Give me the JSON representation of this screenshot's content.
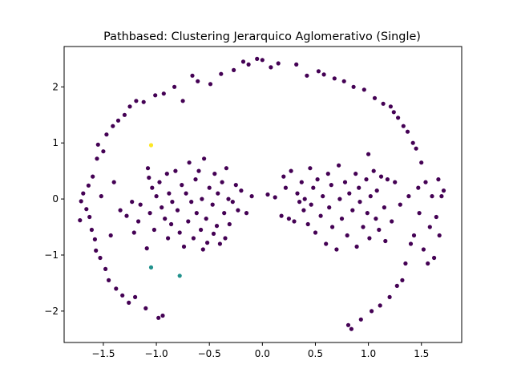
{
  "chart_data": {
    "type": "scatter",
    "title": "Pathbased: Clustering Jerarquico Aglomerativo (Single)",
    "xlabel": "",
    "ylabel": "",
    "xlim": [
      -1.87,
      1.88
    ],
    "ylim": [
      -2.56,
      2.72
    ],
    "xticks": [
      -1.5,
      -1.0,
      -0.5,
      0.0,
      0.5,
      1.0,
      1.5
    ],
    "xtick_labels": [
      "−1.5",
      "−1.0",
      "−0.5",
      "0.0",
      "0.5",
      "1.0",
      "1.5"
    ],
    "yticks": [
      -2,
      -1,
      0,
      1,
      2
    ],
    "ytick_labels": [
      "−2",
      "−1",
      "0",
      "1",
      "2"
    ],
    "grid": false,
    "series": [
      {
        "color": "#440154",
        "points": [
          [
            -1.72,
            -0.38
          ],
          [
            -1.71,
            -0.04
          ],
          [
            -1.69,
            0.1
          ],
          [
            -1.66,
            -0.18
          ],
          [
            -1.64,
            0.24
          ],
          [
            -1.63,
            -0.32
          ],
          [
            -1.61,
            -0.55
          ],
          [
            -1.6,
            0.4
          ],
          [
            -1.58,
            -0.72
          ],
          [
            -1.57,
            -0.92
          ],
          [
            -1.56,
            0.72
          ],
          [
            -1.55,
            0.97
          ],
          [
            -1.53,
            -1.05
          ],
          [
            -1.52,
            0.05
          ],
          [
            -1.5,
            0.85
          ],
          [
            -1.48,
            -1.25
          ],
          [
            -1.47,
            1.15
          ],
          [
            -1.45,
            -1.45
          ],
          [
            -1.43,
            -0.65
          ],
          [
            -1.41,
            1.3
          ],
          [
            -1.4,
            0.3
          ],
          [
            -1.38,
            -1.6
          ],
          [
            -1.36,
            1.4
          ],
          [
            -1.34,
            -0.2
          ],
          [
            -1.32,
            -1.72
          ],
          [
            -1.3,
            1.5
          ],
          [
            -1.28,
            -0.3
          ],
          [
            -1.26,
            -1.85
          ],
          [
            -1.25,
            1.65
          ],
          [
            -1.23,
            -0.05
          ],
          [
            -1.21,
            -0.6
          ],
          [
            -1.2,
            -1.75
          ],
          [
            -1.19,
            1.75
          ],
          [
            -1.17,
            -0.4
          ],
          [
            -1.15,
            -0.1
          ],
          [
            -1.12,
            1.73
          ],
          [
            -1.1,
            -1.95
          ],
          [
            -1.09,
            -0.88
          ],
          [
            -1.08,
            0.55
          ],
          [
            -1.07,
            0.38
          ],
          [
            -1.06,
            -0.25
          ],
          [
            -1.04,
            0.2
          ],
          [
            -1.02,
            -0.55
          ],
          [
            -1.01,
            1.85
          ],
          [
            -1.0,
            0.05
          ],
          [
            -0.98,
            -2.12
          ],
          [
            -0.97,
            0.3
          ],
          [
            -0.95,
            -0.15
          ],
          [
            -0.94,
            -2.08
          ],
          [
            -0.93,
            1.88
          ],
          [
            -0.92,
            -0.35
          ],
          [
            -0.9,
            0.45
          ],
          [
            -0.89,
            -0.7
          ],
          [
            -0.88,
            0.1
          ],
          [
            -0.86,
            -0.45
          ],
          [
            -0.85,
            -0.05
          ],
          [
            -0.83,
            2.0
          ],
          [
            -0.82,
            0.5
          ],
          [
            -0.8,
            -0.2
          ],
          [
            -0.78,
            -0.6
          ],
          [
            -0.76,
            0.25
          ],
          [
            -0.75,
            1.75
          ],
          [
            -0.74,
            -0.85
          ],
          [
            -0.72,
            0.1
          ],
          [
            -0.7,
            -0.4
          ],
          [
            -0.69,
            0.65
          ],
          [
            -0.67,
            -0.05
          ],
          [
            -0.66,
            2.2
          ],
          [
            -0.65,
            -0.7
          ],
          [
            -0.63,
            0.35
          ],
          [
            -0.62,
            -0.25
          ],
          [
            -0.61,
            2.1
          ],
          [
            -0.6,
            0.5
          ],
          [
            -0.58,
            -0.55
          ],
          [
            -0.57,
            0.0
          ],
          [
            -0.56,
            -0.9
          ],
          [
            -0.55,
            0.72
          ],
          [
            -0.53,
            -0.35
          ],
          [
            -0.52,
            -0.78
          ],
          [
            -0.5,
            0.2
          ],
          [
            -0.49,
            2.05
          ],
          [
            -0.47,
            -0.1
          ],
          [
            -0.46,
            -0.62
          ],
          [
            -0.45,
            0.45
          ],
          [
            -0.43,
            -0.48
          ],
          [
            -0.42,
            0.1
          ],
          [
            -0.4,
            -0.8
          ],
          [
            -0.39,
            2.23
          ],
          [
            -0.38,
            0.3
          ],
          [
            -0.36,
            -0.25
          ],
          [
            -0.35,
            -0.7
          ],
          [
            -0.34,
            0.55
          ],
          [
            -0.32,
            0.0
          ],
          [
            -0.31,
            -0.45
          ],
          [
            -0.28,
            -0.05
          ],
          [
            -0.27,
            2.3
          ],
          [
            -0.25,
            0.25
          ],
          [
            -0.23,
            -0.2
          ],
          [
            -0.2,
            0.15
          ],
          [
            -0.18,
            2.45
          ],
          [
            -0.15,
            -0.25
          ],
          [
            -0.13,
            2.4
          ],
          [
            -0.1,
            0.05
          ],
          [
            -0.05,
            2.5
          ],
          [
            0.0,
            2.48
          ],
          [
            0.05,
            0.08
          ],
          [
            0.08,
            2.35
          ],
          [
            0.12,
            0.03
          ],
          [
            0.15,
            2.42
          ],
          [
            0.18,
            -0.3
          ],
          [
            0.2,
            0.4
          ],
          [
            0.22,
            0.2
          ],
          [
            0.25,
            -0.35
          ],
          [
            0.27,
            0.5
          ],
          [
            0.3,
            -0.4
          ],
          [
            0.32,
            2.4
          ],
          [
            0.33,
            0.1
          ],
          [
            0.35,
            -0.05
          ],
          [
            0.37,
            0.3
          ],
          [
            0.39,
            -0.2
          ],
          [
            0.4,
            0.0
          ],
          [
            0.42,
            2.2
          ],
          [
            0.43,
            -0.45
          ],
          [
            0.45,
            0.55
          ],
          [
            0.46,
            -0.1
          ],
          [
            0.48,
            0.2
          ],
          [
            0.5,
            -0.6
          ],
          [
            0.52,
            0.35
          ],
          [
            0.53,
            2.28
          ],
          [
            0.55,
            -0.3
          ],
          [
            0.57,
            0.05
          ],
          [
            0.58,
            2.22
          ],
          [
            0.6,
            -0.8
          ],
          [
            0.62,
            0.45
          ],
          [
            0.63,
            -0.15
          ],
          [
            0.65,
            0.25
          ],
          [
            0.66,
            -0.5
          ],
          [
            0.68,
            2.15
          ],
          [
            0.7,
            -0.9
          ],
          [
            0.72,
            0.6
          ],
          [
            0.73,
            0.0
          ],
          [
            0.75,
            -0.35
          ],
          [
            0.77,
            2.1
          ],
          [
            0.78,
            0.3
          ],
          [
            0.8,
            -0.65
          ],
          [
            0.81,
            -2.25
          ],
          [
            0.82,
            0.1
          ],
          [
            0.84,
            -2.32
          ],
          [
            0.85,
            -0.2
          ],
          [
            0.86,
            2.0
          ],
          [
            0.88,
            0.45
          ],
          [
            0.89,
            -0.85
          ],
          [
            0.91,
            0.2
          ],
          [
            0.92,
            -0.05
          ],
          [
            0.93,
            -2.15
          ],
          [
            0.95,
            -0.5
          ],
          [
            0.96,
            1.95
          ],
          [
            0.98,
            0.35
          ],
          [
            0.99,
            -0.25
          ],
          [
            1.0,
            0.8
          ],
          [
            1.01,
            -0.7
          ],
          [
            1.02,
            0.05
          ],
          [
            1.03,
            -2.0
          ],
          [
            1.05,
            0.5
          ],
          [
            1.06,
            1.8
          ],
          [
            1.07,
            -0.35
          ],
          [
            1.08,
            0.15
          ],
          [
            1.1,
            -0.55
          ],
          [
            1.11,
            -1.9
          ],
          [
            1.12,
            0.4
          ],
          [
            1.14,
            1.7
          ],
          [
            1.15,
            -0.15
          ],
          [
            1.16,
            -0.75
          ],
          [
            1.18,
            0.35
          ],
          [
            1.2,
            -1.75
          ],
          [
            1.21,
            1.65
          ],
          [
            1.22,
            -0.4
          ],
          [
            1.24,
            1.55
          ],
          [
            1.25,
            0.3
          ],
          [
            1.27,
            -1.55
          ],
          [
            1.28,
            1.45
          ],
          [
            1.3,
            -0.1
          ],
          [
            1.32,
            -1.45
          ],
          [
            1.33,
            1.3
          ],
          [
            1.35,
            -1.15
          ],
          [
            1.37,
            1.2
          ],
          [
            1.38,
            0.05
          ],
          [
            1.4,
            -0.8
          ],
          [
            1.42,
            1.0
          ],
          [
            1.43,
            -0.65
          ],
          [
            1.45,
            0.9
          ],
          [
            1.47,
            0.2
          ],
          [
            1.48,
            -0.25
          ],
          [
            1.5,
            0.65
          ],
          [
            1.52,
            -0.9
          ],
          [
            1.54,
            0.3
          ],
          [
            1.56,
            -1.15
          ],
          [
            1.58,
            -0.5
          ],
          [
            1.6,
            0.05
          ],
          [
            1.62,
            -1.05
          ],
          [
            1.64,
            -0.32
          ],
          [
            1.66,
            0.35
          ],
          [
            1.67,
            -0.65
          ],
          [
            1.69,
            0.05
          ],
          [
            1.71,
            0.15
          ]
        ]
      },
      {
        "color": "#21918c",
        "points": [
          [
            -1.05,
            -1.22
          ],
          [
            -0.78,
            -1.37
          ]
        ]
      },
      {
        "color": "#fde725",
        "points": [
          [
            -1.05,
            0.96
          ]
        ]
      }
    ]
  }
}
